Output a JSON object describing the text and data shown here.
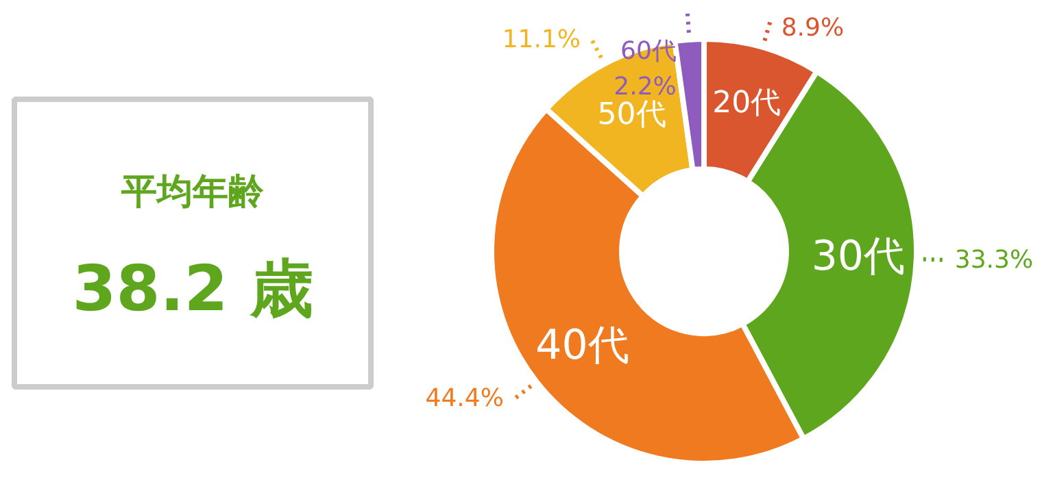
{
  "chart_data": {
    "type": "donut",
    "categories": [
      "20代",
      "30代",
      "40代",
      "50代",
      "60代"
    ],
    "values": [
      8.9,
      33.3,
      44.4,
      11.1,
      2.2
    ],
    "colors": [
      "#d9562f",
      "#5fa61f",
      "#f07a20",
      "#f0b520",
      "#8e5bbf"
    ],
    "value_labels": [
      "8.9%",
      "33.3%",
      "44.4%",
      "11.1%",
      "2.2%"
    ],
    "annotations": [
      "平均年齢",
      "38.2 歳"
    ]
  }
}
